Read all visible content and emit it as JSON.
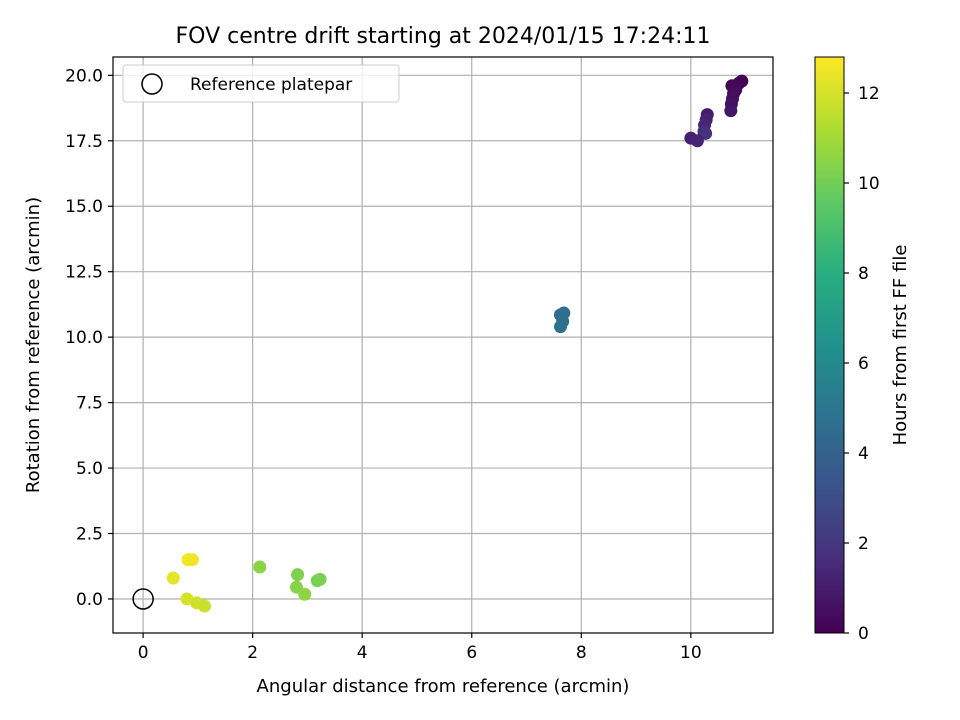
{
  "chart_data": {
    "type": "scatter",
    "title": "FOV centre drift starting at 2024/01/15 17:24:11",
    "xlabel": "Angular distance from reference (arcmin)",
    "ylabel": "Rotation from reference (arcmin)",
    "xlim": [
      -0.55,
      11.5
    ],
    "ylim": [
      -1.3,
      20.7
    ],
    "xticks": [
      0,
      2,
      4,
      6,
      8,
      10
    ],
    "xtick_labels": [
      "0",
      "2",
      "4",
      "6",
      "8",
      "10"
    ],
    "yticks": [
      0,
      2.5,
      5,
      7.5,
      10,
      12.5,
      15,
      17.5,
      20
    ],
    "ytick_labels": [
      "0.0",
      "2.5",
      "5.0",
      "7.5",
      "10.0",
      "12.5",
      "15.0",
      "17.5",
      "20.0"
    ],
    "grid": true,
    "legend": {
      "position": "top-left",
      "entries": [
        "Reference platepar"
      ]
    },
    "reference_point": {
      "x": 0,
      "y": 0,
      "label": "Reference platepar"
    },
    "colorbar": {
      "label": "Hours from first FF file",
      "colormap": "viridis",
      "range": [
        0,
        12.8
      ],
      "ticks": [
        0,
        2,
        4,
        6,
        8,
        10,
        12
      ],
      "tick_labels": [
        "0",
        "2",
        "4",
        "6",
        "8",
        "10",
        "12"
      ]
    },
    "points": [
      {
        "x": 10.93,
        "y": 19.78,
        "c": 0.0
      },
      {
        "x": 10.88,
        "y": 19.7,
        "c": 0.1
      },
      {
        "x": 10.75,
        "y": 19.6,
        "c": 0.2
      },
      {
        "x": 10.82,
        "y": 19.45,
        "c": 0.3
      },
      {
        "x": 10.78,
        "y": 19.3,
        "c": 0.4
      },
      {
        "x": 10.76,
        "y": 19.1,
        "c": 0.5
      },
      {
        "x": 10.74,
        "y": 18.9,
        "c": 0.6
      },
      {
        "x": 10.73,
        "y": 18.65,
        "c": 0.7
      },
      {
        "x": 10.3,
        "y": 18.5,
        "c": 1.0
      },
      {
        "x": 10.28,
        "y": 18.3,
        "c": 1.2
      },
      {
        "x": 10.25,
        "y": 18.1,
        "c": 1.4
      },
      {
        "x": 10.24,
        "y": 17.85,
        "c": 1.6
      },
      {
        "x": 10.27,
        "y": 17.78,
        "c": 1.8
      },
      {
        "x": 10.0,
        "y": 17.6,
        "c": 1.1
      },
      {
        "x": 10.12,
        "y": 17.5,
        "c": 1.3
      },
      {
        "x": 7.62,
        "y": 10.85,
        "c": 4.5
      },
      {
        "x": 7.68,
        "y": 10.92,
        "c": 4.6
      },
      {
        "x": 7.66,
        "y": 10.6,
        "c": 4.7
      },
      {
        "x": 7.62,
        "y": 10.4,
        "c": 4.8
      },
      {
        "x": 2.13,
        "y": 1.22,
        "c": 10.5
      },
      {
        "x": 2.82,
        "y": 0.93,
        "c": 10.3
      },
      {
        "x": 3.18,
        "y": 0.7,
        "c": 10.1
      },
      {
        "x": 3.23,
        "y": 0.75,
        "c": 10.2
      },
      {
        "x": 2.8,
        "y": 0.45,
        "c": 10.4
      },
      {
        "x": 2.95,
        "y": 0.18,
        "c": 10.6
      },
      {
        "x": 0.82,
        "y": 1.5,
        "c": 12.6
      },
      {
        "x": 0.9,
        "y": 1.5,
        "c": 12.5
      },
      {
        "x": 0.55,
        "y": 0.8,
        "c": 12.3
      },
      {
        "x": 0.8,
        "y": 0.0,
        "c": 12.0
      },
      {
        "x": 0.98,
        "y": -0.15,
        "c": 11.9
      },
      {
        "x": 1.12,
        "y": -0.27,
        "c": 11.8
      }
    ]
  }
}
